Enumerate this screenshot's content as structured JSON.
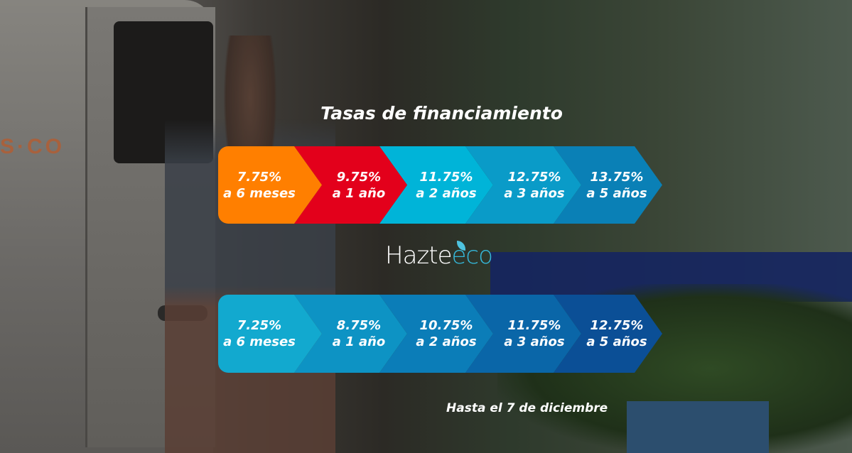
{
  "van_logo_text": "S·CO",
  "title": "Tasas de financiamiento",
  "brand": {
    "name_part1": "Hazte",
    "name_part2": "eco"
  },
  "colors": {
    "top_row": [
      "#ff7f00",
      "#e3001b",
      "#00b4d8",
      "#0a9bc8",
      "#0a80b6"
    ],
    "bottom_row": [
      "#12a9cf",
      "#0d93c4",
      "#0b7db8",
      "#0a66a8",
      "#0b4f96"
    ]
  },
  "top_rates": [
    {
      "rate": "7.75%",
      "term": "a 6 meses"
    },
    {
      "rate": "9.75%",
      "term": "a 1 año"
    },
    {
      "rate": "11.75%",
      "term": "a 2 años"
    },
    {
      "rate": "12.75%",
      "term": "a 3 años"
    },
    {
      "rate": "13.75%",
      "term": "a 5 años"
    }
  ],
  "bottom_rates": [
    {
      "rate": "7.25%",
      "term": "a 6 meses"
    },
    {
      "rate": "8.75%",
      "term": "a 1 año"
    },
    {
      "rate": "10.75%",
      "term": "a 2 años"
    },
    {
      "rate": "11.75%",
      "term": "a 3 años"
    },
    {
      "rate": "12.75%",
      "term": "a 5 años"
    }
  ],
  "footer": "Hasta el 7 de diciembre"
}
